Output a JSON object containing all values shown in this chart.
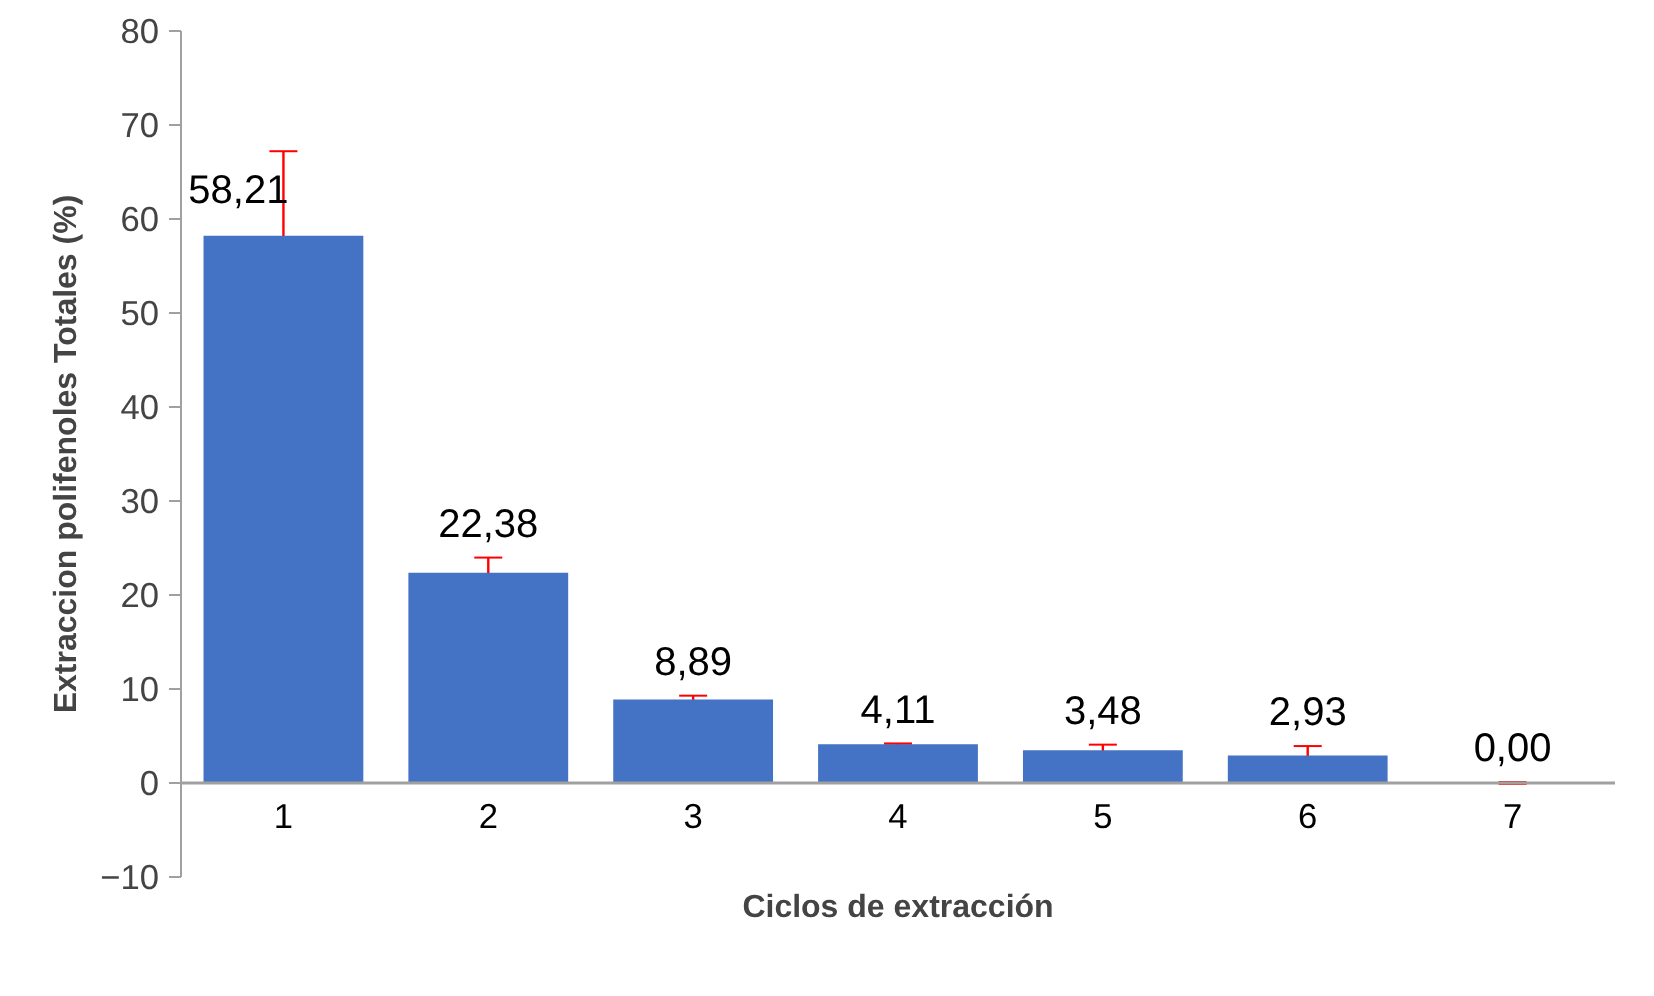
{
  "chart_data": {
    "type": "bar",
    "xlabel": "Ciclos de extracción",
    "ylabel": "Extraccion polifenoles Totales (%)",
    "categories": [
      "1",
      "2",
      "3",
      "4",
      "5",
      "6",
      "7"
    ],
    "values": [
      58.21,
      22.38,
      8.89,
      4.11,
      3.48,
      2.93,
      0.0
    ],
    "value_labels": [
      "58,21",
      "22,38",
      "8,89",
      "4,11",
      "3,48",
      "2,93",
      "0,00"
    ],
    "errors": [
      9.0,
      1.6,
      0.4,
      0.1,
      0.6,
      1.0,
      0.1
    ],
    "color": "#4472c4",
    "ylim": [
      -10,
      80
    ],
    "yticks": [
      -10,
      0,
      10,
      20,
      30,
      40,
      50,
      60,
      70,
      80
    ],
    "grid": false
  }
}
